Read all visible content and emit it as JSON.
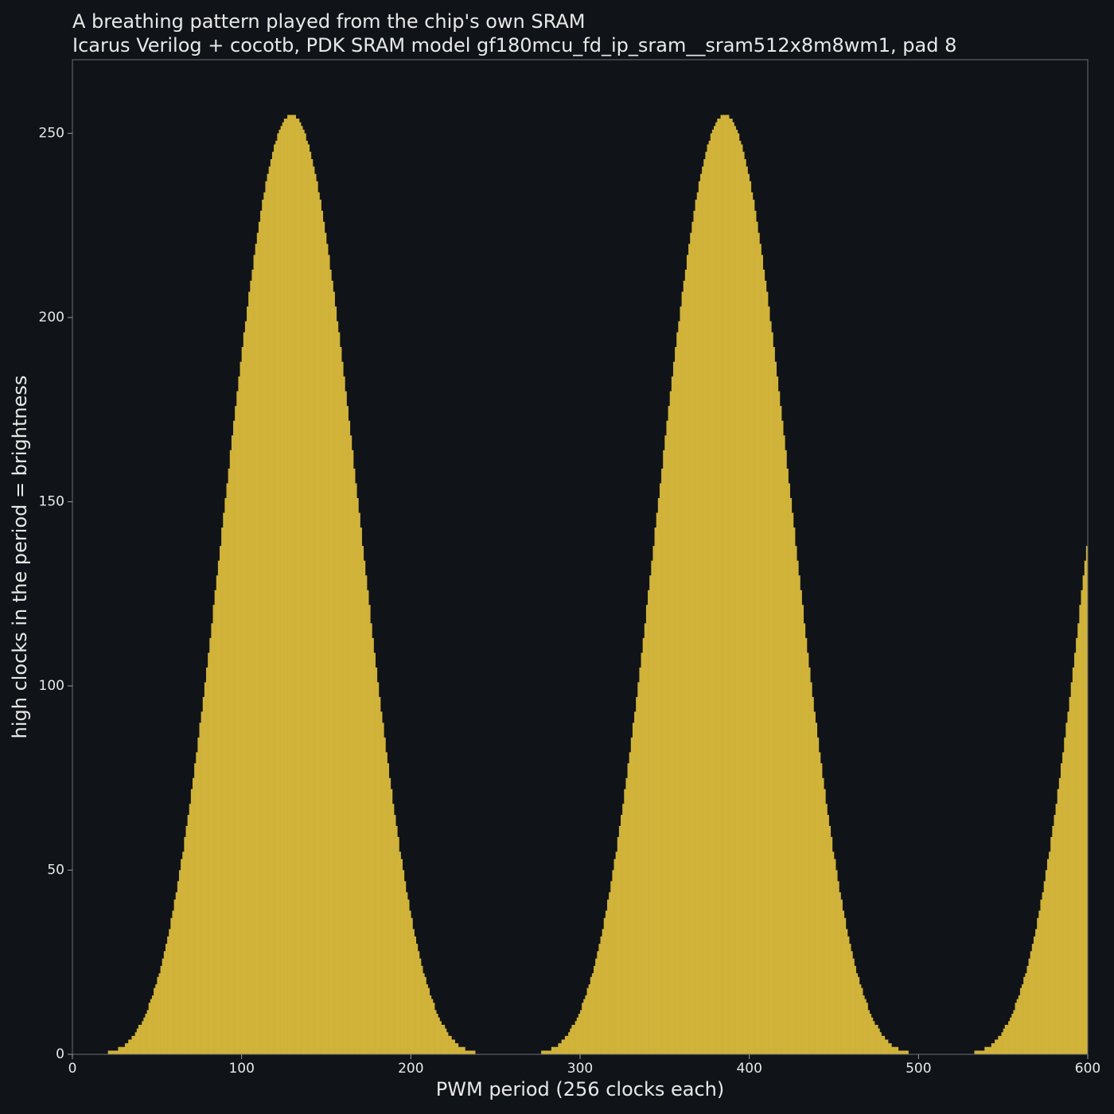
{
  "chart_data": {
    "type": "bar",
    "title": "A breathing pattern played from the chip's own SRAM",
    "subtitle": "Icarus Verilog + cocotb, PDK SRAM model gf180mcu_fd_ip_sram__sram512x8m8wm1, pad 8",
    "x_label": "PWM period  (256 clocks each)",
    "y_label": "high clocks in the period  =  brightness",
    "color": "#d1b33a",
    "xlim": [
      0,
      600
    ],
    "ylim": [
      0,
      270
    ],
    "xticks": [
      0,
      100,
      200,
      300,
      400,
      500,
      600
    ],
    "yticks": [
      0,
      50,
      100,
      150,
      200,
      250
    ],
    "grid": false,
    "x": [
      0,
      1,
      2,
      3,
      4,
      5,
      6,
      7,
      8,
      9,
      10,
      11,
      12,
      13,
      14,
      15,
      16,
      17,
      18,
      19,
      20,
      21,
      22,
      23,
      24,
      25,
      26,
      27,
      28,
      29,
      30,
      31,
      32,
      33,
      34,
      35,
      36,
      37,
      38,
      39,
      40,
      41,
      42,
      43,
      44,
      45,
      46,
      47,
      48,
      49,
      50,
      51,
      52,
      53,
      54,
      55,
      56,
      57,
      58,
      59,
      60,
      61,
      62,
      63,
      64,
      65,
      66,
      67,
      68,
      69,
      70,
      71,
      72,
      73,
      74,
      75,
      76,
      77,
      78,
      79,
      80,
      81,
      82,
      83,
      84,
      85,
      86,
      87,
      88,
      89,
      90,
      91,
      92,
      93,
      94,
      95,
      96,
      97,
      98,
      99,
      100,
      101,
      102,
      103,
      104,
      105,
      106,
      107,
      108,
      109,
      110,
      111,
      112,
      113,
      114,
      115,
      116,
      117,
      118,
      119,
      120,
      121,
      122,
      123,
      124,
      125,
      126,
      127,
      128,
      129,
      130,
      131,
      132,
      133,
      134,
      135,
      136,
      137,
      138,
      139,
      140,
      141,
      142,
      143,
      144,
      145,
      146,
      147,
      148,
      149,
      150,
      151,
      152,
      153,
      154,
      155,
      156,
      157,
      158,
      159,
      160,
      161,
      162,
      163,
      164,
      165,
      166,
      167,
      168,
      169,
      170,
      171,
      172,
      173,
      174,
      175,
      176,
      177,
      178,
      179,
      180,
      181,
      182,
      183,
      184,
      185,
      186,
      187,
      188,
      189,
      190,
      191,
      192,
      193,
      194,
      195,
      196,
      197,
      198,
      199,
      200,
      201,
      202,
      203,
      204,
      205,
      206,
      207,
      208,
      209,
      210,
      211,
      212,
      213,
      214,
      215,
      216,
      217,
      218,
      219,
      220,
      221,
      222,
      223,
      224,
      225,
      226,
      227,
      228,
      229,
      230,
      231,
      232,
      233,
      234,
      235,
      236,
      237,
      238,
      239,
      240,
      241,
      242,
      243,
      244,
      245,
      246,
      247,
      248,
      249,
      250,
      251,
      252,
      253,
      254,
      255,
      256,
      257,
      258,
      259,
      260,
      261,
      262,
      263,
      264,
      265,
      266,
      267,
      268,
      269,
      270,
      271,
      272,
      273,
      274,
      275,
      276,
      277,
      278,
      279,
      280,
      281,
      282,
      283,
      284,
      285,
      286,
      287,
      288,
      289,
      290,
      291,
      292,
      293,
      294,
      295,
      296,
      297,
      298,
      299,
      300,
      301,
      302,
      303,
      304,
      305,
      306,
      307,
      308,
      309,
      310,
      311,
      312,
      313,
      314,
      315,
      316,
      317,
      318,
      319,
      320,
      321,
      322,
      323,
      324,
      325,
      326,
      327,
      328,
      329,
      330,
      331,
      332,
      333,
      334,
      335,
      336,
      337,
      338,
      339,
      340,
      341,
      342,
      343,
      344,
      345,
      346,
      347,
      348,
      349,
      350,
      351,
      352,
      353,
      354,
      355,
      356,
      357,
      358,
      359,
      360,
      361,
      362,
      363,
      364,
      365,
      366,
      367,
      368,
      369,
      370,
      371,
      372,
      373,
      374,
      375,
      376,
      377,
      378,
      379,
      380,
      381,
      382,
      383,
      384,
      385,
      386,
      387,
      388,
      389,
      390,
      391,
      392,
      393,
      394,
      395,
      396,
      397,
      398,
      399,
      400,
      401,
      402,
      403,
      404,
      405,
      406,
      407,
      408,
      409,
      410,
      411,
      412,
      413,
      414,
      415,
      416,
      417,
      418,
      419,
      420,
      421,
      422,
      423,
      424,
      425,
      426,
      427,
      428,
      429,
      430,
      431,
      432,
      433,
      434,
      435,
      436,
      437,
      438,
      439,
      440,
      441,
      442,
      443,
      444,
      445,
      446,
      447,
      448,
      449,
      450,
      451,
      452,
      453,
      454,
      455,
      456,
      457,
      458,
      459,
      460,
      461,
      462,
      463,
      464,
      465,
      466,
      467,
      468,
      469,
      470,
      471,
      472,
      473,
      474,
      475,
      476,
      477,
      478,
      479,
      480,
      481,
      482,
      483,
      484,
      485,
      486,
      487,
      488,
      489,
      490,
      491,
      492,
      493,
      494,
      495,
      496,
      497,
      498,
      499,
      500,
      501,
      502,
      503,
      504,
      505,
      506,
      507,
      508,
      509,
      510,
      511,
      512,
      513,
      514,
      515,
      516,
      517,
      518,
      519,
      520,
      521,
      522,
      523,
      524,
      525,
      526,
      527,
      528,
      529,
      530,
      531,
      532,
      533,
      534,
      535,
      536,
      537,
      538,
      539,
      540,
      541,
      542,
      543,
      544,
      545,
      546,
      547,
      548,
      549,
      550,
      551,
      552,
      553,
      554,
      555,
      556,
      557,
      558,
      559,
      560,
      561,
      562,
      563,
      564,
      565,
      566,
      567,
      568,
      569,
      570,
      571,
      572,
      573,
      574,
      575,
      576,
      577,
      578,
      579,
      580,
      581,
      582,
      583,
      584,
      585,
      586,
      587,
      588,
      589,
      590,
      591,
      592,
      593,
      594,
      595,
      596,
      597,
      598,
      599
    ],
    "values": [
      0,
      0,
      0,
      0,
      0,
      0,
      0,
      0,
      0,
      0,
      0,
      0,
      0,
      0,
      0,
      0,
      0,
      0,
      0,
      0,
      0,
      1,
      1,
      1,
      1,
      1,
      1,
      2,
      2,
      2,
      2,
      3,
      3,
      4,
      4,
      5,
      5,
      6,
      7,
      8,
      8,
      9,
      10,
      11,
      12,
      14,
      15,
      16,
      18,
      19,
      21,
      22,
      24,
      26,
      28,
      30,
      32,
      34,
      37,
      39,
      42,
      44,
      47,
      50,
      53,
      55,
      59,
      62,
      65,
      68,
      72,
      75,
      79,
      82,
      86,
      90,
      93,
      97,
      101,
      105,
      109,
      113,
      117,
      122,
      126,
      130,
      134,
      138,
      143,
      147,
      151,
      155,
      159,
      164,
      168,
      172,
      176,
      180,
      184,
      188,
      192,
      196,
      199,
      203,
      207,
      210,
      213,
      217,
      220,
      223,
      226,
      229,
      232,
      234,
      237,
      239,
      241,
      243,
      245,
      247,
      248,
      250,
      251,
      252,
      253,
      254,
      254,
      255,
      255,
      255,
      255,
      255,
      254,
      254,
      253,
      252,
      251,
      250,
      248,
      247,
      245,
      243,
      241,
      239,
      237,
      234,
      232,
      229,
      226,
      223,
      220,
      217,
      213,
      210,
      207,
      203,
      199,
      196,
      192,
      188,
      184,
      180,
      176,
      172,
      168,
      164,
      159,
      155,
      151,
      147,
      143,
      138,
      134,
      130,
      126,
      122,
      117,
      113,
      109,
      105,
      101,
      97,
      93,
      90,
      86,
      82,
      79,
      75,
      72,
      68,
      65,
      62,
      59,
      55,
      53,
      50,
      47,
      44,
      42,
      39,
      37,
      34,
      32,
      30,
      28,
      26,
      24,
      22,
      21,
      19,
      18,
      16,
      15,
      14,
      12,
      11,
      10,
      9,
      8,
      8,
      7,
      6,
      5,
      5,
      4,
      4,
      3,
      3,
      2,
      2,
      2,
      2,
      1,
      1,
      1,
      1,
      1,
      1,
      0,
      0,
      0,
      0,
      0,
      0,
      0,
      0,
      0,
      0,
      0,
      0,
      0,
      0,
      0,
      0,
      0,
      0,
      0,
      0,
      0,
      0,
      0,
      0,
      0,
      0,
      0,
      0,
      0,
      0,
      0,
      0,
      0,
      0,
      0,
      0,
      0,
      0,
      0,
      1,
      1,
      1,
      1,
      1,
      1,
      2,
      2,
      2,
      2,
      3,
      3,
      4,
      4,
      5,
      5,
      6,
      7,
      8,
      8,
      9,
      10,
      11,
      12,
      14,
      15,
      16,
      18,
      19,
      21,
      22,
      24,
      26,
      28,
      30,
      32,
      34,
      37,
      39,
      42,
      44,
      47,
      50,
      53,
      55,
      59,
      62,
      65,
      68,
      72,
      75,
      79,
      82,
      86,
      90,
      93,
      97,
      101,
      105,
      109,
      113,
      117,
      122,
      126,
      130,
      134,
      138,
      143,
      147,
      151,
      155,
      159,
      164,
      168,
      172,
      176,
      180,
      184,
      188,
      192,
      196,
      199,
      203,
      207,
      210,
      213,
      217,
      220,
      223,
      226,
      229,
      232,
      234,
      237,
      239,
      241,
      243,
      245,
      247,
      248,
      250,
      251,
      252,
      253,
      254,
      254,
      255,
      255,
      255,
      255,
      255,
      254,
      254,
      253,
      252,
      251,
      250,
      248,
      247,
      245,
      243,
      241,
      239,
      237,
      234,
      232,
      229,
      226,
      223,
      220,
      217,
      213,
      210,
      207,
      203,
      199,
      196,
      192,
      188,
      184,
      180,
      176,
      172,
      168,
      164,
      159,
      155,
      151,
      147,
      143,
      138,
      134,
      130,
      126,
      122,
      117,
      113,
      109,
      105,
      101,
      97,
      93,
      90,
      86,
      82,
      79,
      75,
      72,
      68,
      65,
      62,
      59,
      55,
      53,
      50,
      47,
      44,
      42,
      39,
      37,
      34,
      32,
      30,
      28,
      26,
      24,
      22,
      21,
      19,
      18,
      16,
      15,
      14,
      12,
      11,
      10,
      9,
      8,
      8,
      7,
      6,
      5,
      5,
      4,
      4,
      3,
      3,
      2,
      2,
      2,
      2,
      1,
      1,
      1,
      1,
      1,
      1,
      0,
      0,
      0,
      0,
      0,
      0,
      0,
      0,
      0,
      0,
      0,
      0,
      0,
      0,
      0,
      0,
      0,
      0,
      0,
      0,
      0,
      0,
      0,
      0,
      0,
      0,
      0,
      0,
      0,
      0,
      0,
      0,
      0,
      0,
      0,
      0,
      0,
      0,
      0,
      1,
      1,
      1,
      1,
      1,
      1,
      2,
      2,
      2,
      2,
      3,
      3,
      4,
      4,
      5,
      5,
      6,
      7,
      8,
      8,
      9,
      10,
      11,
      12,
      14,
      15,
      16,
      18,
      19,
      21,
      22,
      24,
      26,
      28,
      30,
      32,
      34,
      37,
      39,
      42,
      44,
      47,
      50,
      53,
      55,
      59,
      62,
      65,
      68,
      72,
      75,
      79,
      82,
      86,
      90,
      93,
      97,
      101,
      105,
      109,
      113,
      117,
      122,
      126,
      130,
      134,
      138
    ]
  }
}
